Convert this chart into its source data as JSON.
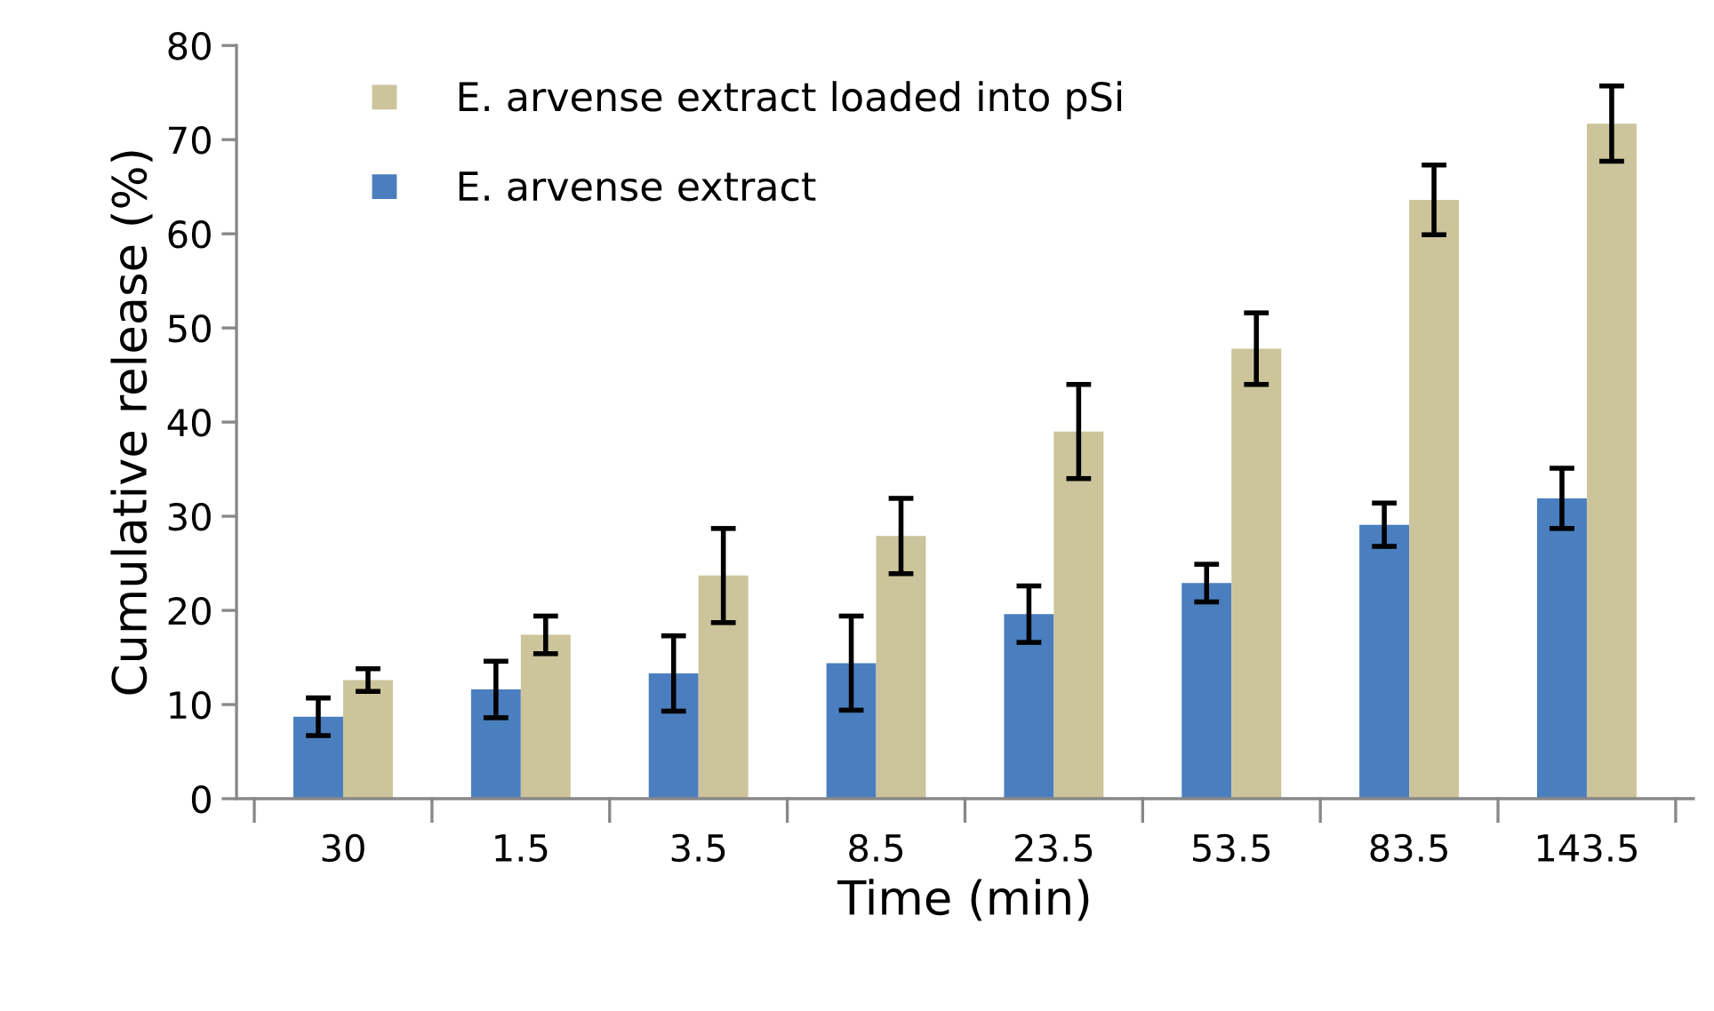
{
  "chart_data": {
    "type": "bar",
    "xlabel": "Time (min)",
    "ylabel": "Cumulative release (%)",
    "categories": [
      "30",
      "1.5",
      "3.5",
      "8.5",
      "23.5",
      "53.5",
      "83.5",
      "143.5"
    ],
    "series": [
      {
        "name": "E. arvense extract",
        "color": "#4a7ebf",
        "values": [
          8.7,
          11.6,
          13.3,
          14.4,
          19.6,
          22.9,
          29.1,
          31.9
        ],
        "errors": [
          2,
          3,
          4,
          5,
          3,
          2,
          2.3,
          3.2
        ]
      },
      {
        "name": "E. arvense extract loaded into pSi",
        "color": "#ccc49a",
        "values": [
          12.6,
          17.4,
          23.7,
          27.9,
          39.0,
          47.8,
          63.6,
          71.7
        ],
        "errors": [
          1.2,
          2,
          5,
          4,
          5,
          3.8,
          3.7,
          4
        ]
      }
    ],
    "ylim": [
      0,
      80
    ],
    "yticks": [
      0,
      10,
      20,
      30,
      40,
      50,
      60,
      70,
      80
    ],
    "grid": false,
    "legend": "top left"
  }
}
